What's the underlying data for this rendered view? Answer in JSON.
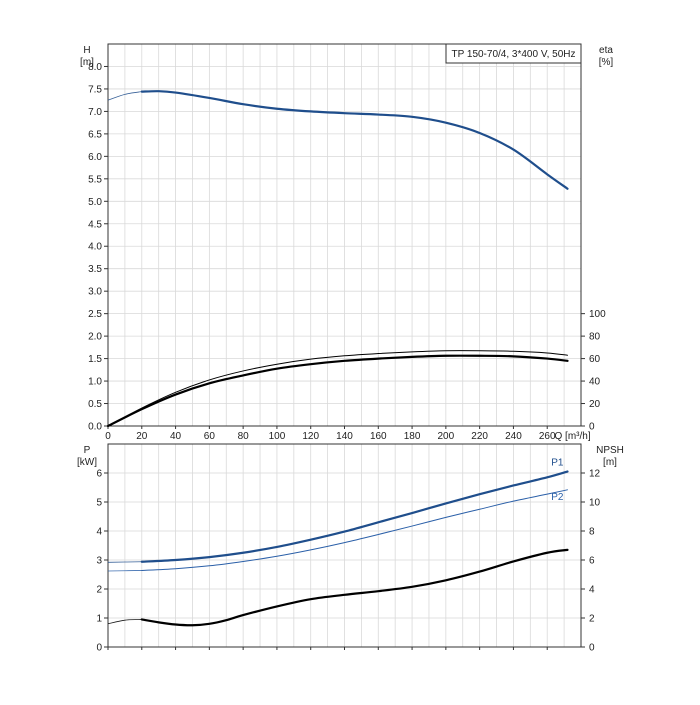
{
  "chart_data": [
    {
      "type": "line",
      "panel": "head-efficiency",
      "title": "TP 150-70/4, 3*400 V, 50Hz",
      "ylabel_left": "H",
      "ylabel_left_unit": "[m]",
      "ylabel_right": "eta",
      "ylabel_right_unit": "[%]",
      "xlabel": "Q [m³/h]",
      "xlim": [
        0,
        280
      ],
      "x_ticks": [
        "0",
        "20",
        "40",
        "60",
        "80",
        "100",
        "120",
        "140",
        "160",
        "180",
        "200",
        "220",
        "240",
        "260"
      ],
      "ylim_left": [
        0,
        8.5
      ],
      "y_left_ticks": [
        "0.0",
        "0.5",
        "1.0",
        "1.5",
        "2.0",
        "2.5",
        "3.0",
        "3.5",
        "4.0",
        "4.5",
        "5.0",
        "5.5",
        "6.0",
        "6.5",
        "7.0",
        "7.5",
        "8.0"
      ],
      "ylim_right": [
        0,
        100
      ],
      "y_right_ticks": [
        "0",
        "20",
        "40",
        "60",
        "80",
        "100"
      ],
      "grid": true,
      "series": [
        {
          "axis": "left",
          "color": "#1f4e8c",
          "x": [
            0,
            10,
            20,
            30,
            40,
            60,
            80,
            100,
            120,
            140,
            160,
            180,
            200,
            220,
            240,
            260,
            272
          ],
          "y": [
            7.25,
            7.38,
            7.44,
            7.45,
            7.42,
            7.3,
            7.16,
            7.06,
            7.0,
            6.96,
            6.93,
            6.88,
            6.75,
            6.52,
            6.15,
            5.6,
            5.28
          ],
          "dashed_below_x": 20
        },
        {
          "axis": "right",
          "color": "#000000",
          "x": [
            0,
            20,
            40,
            60,
            80,
            100,
            120,
            140,
            160,
            180,
            200,
            220,
            240,
            260,
            272
          ],
          "y": [
            0,
            15,
            28,
            38,
            45,
            51,
            55,
            58,
            60,
            61.5,
            62.5,
            62.5,
            62,
            60,
            58
          ]
        },
        {
          "axis": "right",
          "color": "#000000",
          "x": [
            0,
            20,
            40,
            60,
            80,
            100,
            120,
            140,
            160,
            180,
            200,
            220,
            240,
            260,
            272
          ],
          "y": [
            0,
            16,
            30,
            41,
            49,
            55,
            59.5,
            62.5,
            64.5,
            66,
            67,
            67,
            66.5,
            65,
            63
          ],
          "thin": true
        }
      ]
    },
    {
      "type": "line",
      "panel": "power-npsh",
      "ylabel_left": "P",
      "ylabel_left_unit": "[kW]",
      "ylabel_right": "NPSH",
      "ylabel_right_unit": "[m]",
      "xlim": [
        0,
        280
      ],
      "ylim_left": [
        0,
        7
      ],
      "y_left_ticks": [
        "0",
        "1",
        "2",
        "3",
        "4",
        "5",
        "6"
      ],
      "ylim_right": [
        0,
        14
      ],
      "y_right_ticks": [
        "0",
        "2",
        "4",
        "6",
        "8",
        "10",
        "12"
      ],
      "grid": true,
      "series": [
        {
          "name": "P1",
          "axis": "left",
          "color": "#1f4e8c",
          "x": [
            0,
            20,
            40,
            60,
            80,
            100,
            120,
            140,
            160,
            180,
            200,
            220,
            240,
            260,
            272
          ],
          "y": [
            2.92,
            2.94,
            3.0,
            3.1,
            3.25,
            3.45,
            3.7,
            3.98,
            4.3,
            4.62,
            4.95,
            5.27,
            5.57,
            5.85,
            6.05
          ],
          "dashed_below_x": 20
        },
        {
          "name": "P2",
          "axis": "left",
          "color": "#2a5fa8",
          "x": [
            0,
            20,
            40,
            60,
            80,
            100,
            120,
            140,
            160,
            180,
            200,
            220,
            240,
            260,
            272
          ],
          "y": [
            2.62,
            2.64,
            2.7,
            2.8,
            2.95,
            3.13,
            3.35,
            3.6,
            3.88,
            4.17,
            4.47,
            4.75,
            5.03,
            5.27,
            5.42
          ],
          "thin": true,
          "dashed_below_x": 20
        },
        {
          "axis": "right",
          "color": "#000000",
          "x": [
            0,
            10,
            20,
            30,
            40,
            50,
            60,
            70,
            80,
            100,
            120,
            140,
            160,
            180,
            200,
            220,
            240,
            260,
            272
          ],
          "y": [
            1.6,
            1.85,
            1.9,
            1.7,
            1.55,
            1.5,
            1.6,
            1.85,
            2.2,
            2.8,
            3.3,
            3.6,
            3.85,
            4.15,
            4.6,
            5.2,
            5.9,
            6.5,
            6.7
          ],
          "dashed_below_x": 20
        }
      ]
    }
  ]
}
